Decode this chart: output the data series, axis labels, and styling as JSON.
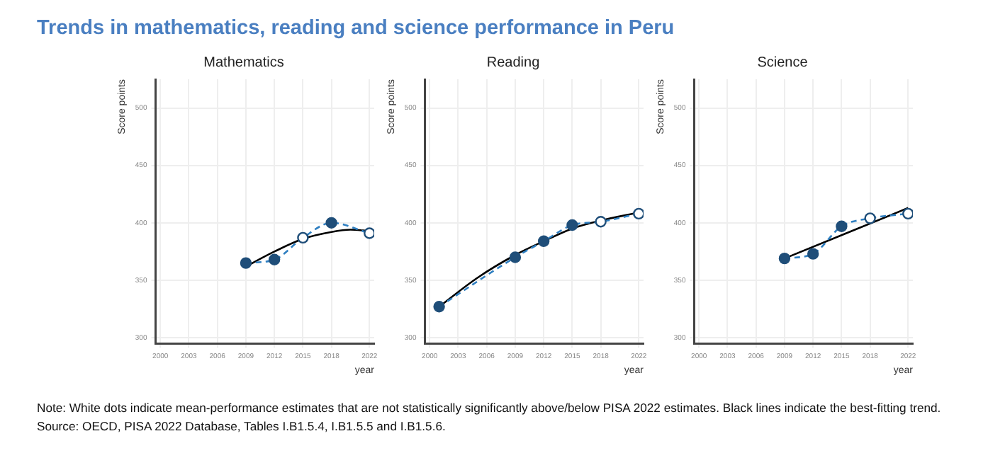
{
  "chart_data": [
    {
      "type": "other",
      "title": "Trends in mathematics, reading and science performance in Peru",
      "annotations": [
        "Note: White dots indicate mean-performance estimates that are not statistically significantly above/below PISA 2022 estimates. Black lines indicate the best-fitting trend.",
        "Source: OECD, PISA 2022 Database, Tables I.B1.5.4, I.B1.5.5 and I.B1.5.6."
      ]
    },
    {
      "type": "line",
      "title": "Mathematics",
      "xlabel": "year",
      "ylabel": "Score points",
      "xlim": [
        1999.5,
        2022.5
      ],
      "xticks": [
        2000,
        2003,
        2006,
        2009,
        2012,
        2015,
        2018,
        2022
      ],
      "ylim": [
        295,
        525
      ],
      "yticks": [
        300,
        350,
        400,
        450,
        500
      ],
      "grid": true,
      "series": [
        {
          "type": "line",
          "color": "#2f7fc1",
          "x": [
            2009,
            2012,
            2015,
            2018,
            2022
          ],
          "values": [
            365,
            368,
            387,
            400,
            391
          ],
          "line_style": "dashed",
          "marker": "none"
        },
        {
          "type": "line",
          "color": "#000000",
          "x": [
            2009,
            2012,
            2015,
            2018,
            2020,
            2022
          ],
          "values": [
            362,
            375,
            386,
            392,
            394,
            393
          ],
          "line_style": "solid",
          "marker": "none"
        },
        {
          "type": "scatter",
          "color": "#1f4e79",
          "x": [
            2009,
            2012,
            2018
          ],
          "values": [
            365,
            368,
            400
          ],
          "marker": "circle"
        },
        {
          "type": "scatter",
          "color": "#ffffff",
          "x": [
            2015,
            2022
          ],
          "values": [
            387,
            391
          ],
          "marker": "circle"
        }
      ]
    },
    {
      "type": "line",
      "title": "Reading",
      "xlabel": "year",
      "ylabel": "Score points",
      "xlim": [
        1999.5,
        2022.5
      ],
      "xticks": [
        2000,
        2003,
        2006,
        2009,
        2012,
        2015,
        2018,
        2022
      ],
      "ylim": [
        295,
        525
      ],
      "yticks": [
        300,
        350,
        400,
        450,
        500
      ],
      "grid": true,
      "series": [
        {
          "type": "line",
          "color": "#2f7fc1",
          "x": [
            2001,
            2009,
            2012,
            2015,
            2018,
            2022
          ],
          "values": [
            327,
            370,
            384,
            398,
            401,
            408
          ],
          "line_style": "dashed",
          "marker": "none"
        },
        {
          "type": "line",
          "color": "#000000",
          "x": [
            2001,
            2005,
            2009,
            2012,
            2015,
            2018,
            2022
          ],
          "values": [
            327,
            352,
            372,
            384,
            395,
            402,
            409
          ],
          "line_style": "solid",
          "marker": "none"
        },
        {
          "type": "scatter",
          "color": "#1f4e79",
          "x": [
            2001,
            2009,
            2012,
            2015
          ],
          "values": [
            327,
            370,
            384,
            398
          ],
          "marker": "circle"
        },
        {
          "type": "scatter",
          "color": "#ffffff",
          "x": [
            2018,
            2022
          ],
          "values": [
            401,
            408
          ],
          "marker": "circle"
        }
      ]
    },
    {
      "type": "line",
      "title": "Science",
      "xlabel": "year",
      "ylabel": "Score points",
      "xlim": [
        1999.5,
        2022.5
      ],
      "xticks": [
        2000,
        2003,
        2006,
        2009,
        2012,
        2015,
        2018,
        2022
      ],
      "ylim": [
        295,
        525
      ],
      "yticks": [
        300,
        350,
        400,
        450,
        500
      ],
      "grid": true,
      "series": [
        {
          "type": "line",
          "color": "#2f7fc1",
          "x": [
            2009,
            2012,
            2015,
            2018,
            2022
          ],
          "values": [
            369,
            373,
            397,
            404,
            408
          ],
          "line_style": "dashed",
          "marker": "none"
        },
        {
          "type": "line",
          "color": "#000000",
          "x": [
            2009,
            2022
          ],
          "values": [
            369,
            413
          ],
          "line_style": "solid",
          "marker": "none"
        },
        {
          "type": "scatter",
          "color": "#1f4e79",
          "x": [
            2009,
            2012,
            2015
          ],
          "values": [
            369,
            373,
            397
          ],
          "marker": "circle"
        },
        {
          "type": "scatter",
          "color": "#ffffff",
          "x": [
            2018,
            2022
          ],
          "values": [
            404,
            408
          ],
          "marker": "circle"
        }
      ]
    }
  ]
}
